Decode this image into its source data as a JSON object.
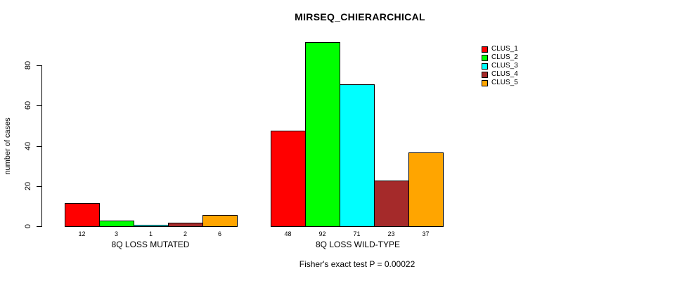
{
  "title": "MIRSEQ_CHIERARCHICAL",
  "y_axis": {
    "label": "number of cases",
    "ticks": [
      0,
      20,
      40,
      60,
      80
    ]
  },
  "footer": "Fisher's exact test P = 0.00022",
  "legend": [
    {
      "label": "CLUS_1",
      "color": "#FF0000"
    },
    {
      "label": "CLUS_2",
      "color": "#00FF00"
    },
    {
      "label": "CLUS_3",
      "color": "#00FFFF"
    },
    {
      "label": "CLUS_4",
      "color": "#A52A2A"
    },
    {
      "label": "CLUS_5",
      "color": "#FFA500"
    }
  ],
  "chart_data": {
    "type": "bar",
    "title": "MIRSEQ_CHIERARCHICAL",
    "xlabel": "",
    "ylabel": "number of cases",
    "ylim": [
      0,
      95
    ],
    "yticks": [
      0,
      20,
      40,
      60,
      80
    ],
    "grid": false,
    "legend_position": "topright",
    "categories": [
      "8Q LOSS MUTATED",
      "8Q LOSS WILD-TYPE"
    ],
    "series": [
      {
        "name": "CLUS_1",
        "color": "#FF0000",
        "values": [
          12,
          48
        ]
      },
      {
        "name": "CLUS_2",
        "color": "#00FF00",
        "values": [
          3,
          92
        ]
      },
      {
        "name": "CLUS_3",
        "color": "#00FFFF",
        "values": [
          1,
          71
        ]
      },
      {
        "name": "CLUS_4",
        "color": "#A52A2A",
        "values": [
          2,
          23
        ]
      },
      {
        "name": "CLUS_5",
        "color": "#FFA500",
        "values": [
          6,
          37
        ]
      }
    ],
    "bar_value_labels": {
      "8Q LOSS MUTATED": [
        12,
        3,
        1,
        2,
        6
      ],
      "8Q LOSS WILD-TYPE": [
        48,
        92,
        71,
        23,
        37
      ]
    },
    "annotation": "Fisher's exact test P = 0.00022"
  }
}
